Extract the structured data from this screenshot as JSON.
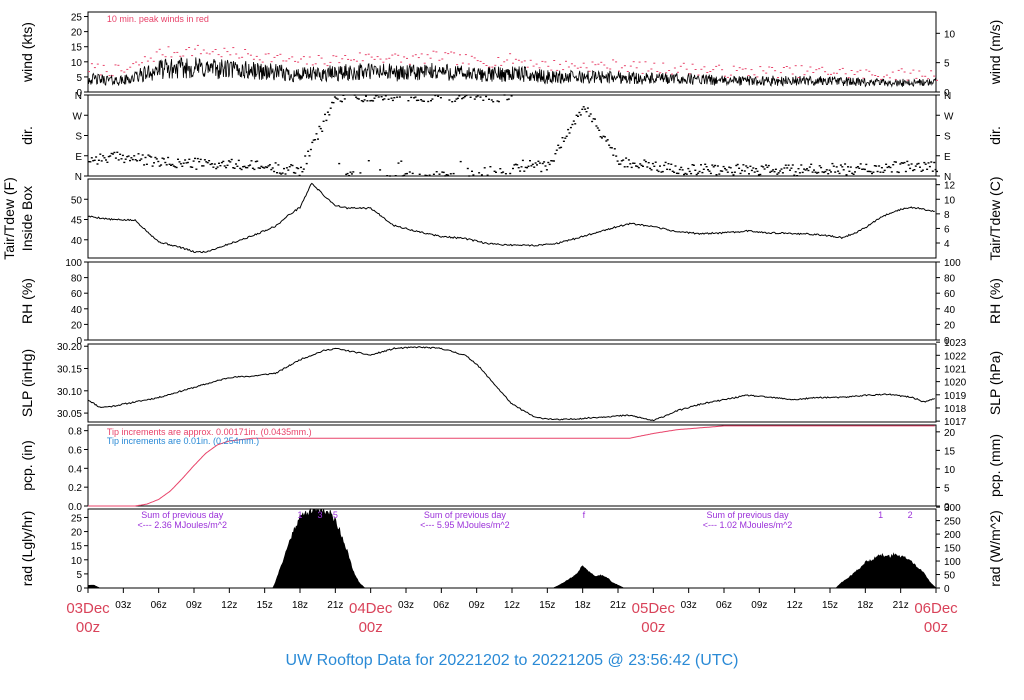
{
  "title": "UW Rooftop Data for 20221202  to  20221205 @ 23:56:42  (UTC)",
  "colors": {
    "peak": "#e8436a",
    "pcp": "#e8436a",
    "note_blue": "#2a8ad6",
    "rad_note": "#9b30d9",
    "date": "#d9435a",
    "title": "#2a8ad6"
  },
  "x_axis": {
    "hour_labels": [
      "03z",
      "06z",
      "09z",
      "12z",
      "15z",
      "18z",
      "21z",
      "03z",
      "06z",
      "09z",
      "12z",
      "15z",
      "18z",
      "21z",
      "03z",
      "06z",
      "09z",
      "12z",
      "15z",
      "18z",
      "21z"
    ],
    "hour_positions_h": [
      3,
      6,
      9,
      12,
      15,
      18,
      21,
      27,
      30,
      33,
      36,
      39,
      42,
      45,
      51,
      54,
      57,
      60,
      63,
      66,
      69
    ],
    "date_labels": [
      {
        "h": 0,
        "day": "03Dec",
        "time": "00z"
      },
      {
        "h": 24,
        "day": "04Dec",
        "time": "00z"
      },
      {
        "h": 48,
        "day": "05Dec",
        "time": "00z"
      },
      {
        "h": 72,
        "day": "06Dec",
        "time": "00z"
      }
    ]
  },
  "panels": {
    "wind": {
      "left_label": "wind (kts)",
      "right_label": "wind (m/s)",
      "left_ticks": [
        "0",
        "5",
        "10",
        "15",
        "20",
        "25"
      ],
      "left_vals": [
        0,
        5,
        10,
        15,
        20,
        25
      ],
      "right_ticks": [
        "0",
        "5",
        "10"
      ],
      "right_vals": [
        0,
        5,
        10
      ],
      "ylim": [
        0,
        26.5
      ],
      "annotation": "10 min. peak winds in red"
    },
    "dir": {
      "left_label": "dir.",
      "right_label": "dir.",
      "ticks": [
        "N",
        "E",
        "S",
        "W",
        "N"
      ],
      "vals": [
        0,
        90,
        180,
        270,
        360
      ]
    },
    "temp": {
      "left_label_1": "Tair/Tdew (F)",
      "left_label_2": "Inside Box",
      "right_label": "Tair/Tdew (C)",
      "left_ticks": [
        "40",
        "45",
        "50"
      ],
      "left_vals": [
        40,
        45,
        50
      ],
      "right_ticks": [
        "4",
        "6",
        "8",
        "10",
        "12"
      ],
      "right_vals": [
        4,
        6,
        8,
        10,
        12
      ],
      "ylim": [
        35.5,
        55
      ]
    },
    "rh": {
      "left_label": "RH (%)",
      "right_label": "RH (%)",
      "ticks": [
        "0",
        "20",
        "40",
        "60",
        "80",
        "100"
      ],
      "vals": [
        0,
        20,
        40,
        60,
        80,
        100
      ],
      "ylim": [
        0,
        100
      ]
    },
    "slp": {
      "left_label": "SLP (inHg)",
      "right_label": "SLP (hPa)",
      "left_ticks": [
        "30.05",
        "30.10",
        "30.15",
        "30.20"
      ],
      "left_vals": [
        30.05,
        30.1,
        30.15,
        30.2
      ],
      "right_ticks": [
        "1017",
        "1018",
        "1019",
        "1020",
        "1021",
        "1022",
        "1023"
      ],
      "ylim": [
        30.03,
        30.205
      ]
    },
    "pcp": {
      "left_label": "pcp. (in)",
      "right_label": "pcp. (mm)",
      "left_ticks": [
        "0.0",
        "0.2",
        "0.4",
        "0.6",
        "0.8"
      ],
      "left_vals": [
        0,
        0.2,
        0.4,
        0.6,
        0.8
      ],
      "right_ticks": [
        "0",
        "5",
        "10",
        "15",
        "20"
      ],
      "right_vals": [
        0,
        5,
        10,
        15,
        20
      ],
      "ylim": [
        0,
        0.86
      ],
      "note_red": "Tip increments are approx. 0.00171in. (0.0435mm.)",
      "note_blue": "Tip increments are 0.01in. (0.254mm.)"
    },
    "rad": {
      "left_label": "rad (Lgly/hr)",
      "right_label": "rad (W/m^2)",
      "left_ticks": [
        "0",
        "5",
        "10",
        "15",
        "20",
        "25"
      ],
      "left_vals": [
        0,
        5,
        10,
        15,
        20,
        25
      ],
      "right_ticks": [
        "0",
        "50",
        "100",
        "150",
        "200",
        "250",
        "300"
      ],
      "right_vals": [
        0,
        50,
        100,
        150,
        200,
        250,
        300
      ],
      "ylim": [
        0,
        28
      ],
      "day_notes": [
        {
          "h": 8,
          "line1": "Sum of previous day",
          "line2": "<--- 2.36 MJoules/m^2"
        },
        {
          "h": 32,
          "line1": "Sum of previous day",
          "line2": "<--- 5.95 MJoules/m^2"
        },
        {
          "h": 56,
          "line1": "Sum of previous day",
          "line2": "<--- 1.02 MJoules/m^2"
        }
      ],
      "markers": [
        {
          "h": 18,
          "text": "1"
        },
        {
          "h": 19.7,
          "text": "3"
        },
        {
          "h": 21,
          "text": "5"
        },
        {
          "h": 42.1,
          "text": "f"
        },
        {
          "h": 67.3,
          "text": "1"
        },
        {
          "h": 69.8,
          "text": "2"
        }
      ]
    }
  },
  "chart_data": [
    {
      "type": "line",
      "title": "",
      "ylabel": "wind (kts)",
      "y2label": "wind (m/s)",
      "ylim": [
        0,
        26.5
      ],
      "series": [
        {
          "name": "10 min. peak winds",
          "color": "#e8436a"
        }
      ],
      "x": [
        0,
        3,
        6,
        9,
        12,
        15,
        18,
        21,
        24,
        27,
        30,
        33,
        36,
        39,
        42,
        45,
        48,
        51,
        54,
        57,
        60,
        63,
        66,
        69,
        72
      ],
      "values": [
        7,
        6,
        12,
        13,
        12,
        11,
        9,
        10,
        11,
        10,
        11,
        9,
        10,
        8,
        8,
        8,
        7,
        7,
        6,
        6,
        6,
        6,
        5,
        5,
        5
      ]
    },
    {
      "type": "scatter",
      "title": "",
      "ylabel": "dir.",
      "ylim": [
        0,
        360
      ],
      "x": [
        0,
        3,
        6,
        9,
        12,
        15,
        18,
        21,
        24,
        27,
        30,
        33,
        36,
        39,
        42,
        45,
        48,
        51,
        54,
        57,
        60,
        63,
        66,
        69,
        72
      ],
      "values": [
        75,
        85,
        60,
        55,
        50,
        40,
        25,
        355,
        355,
        355,
        355,
        355,
        45,
        45,
        310,
        70,
        40,
        30,
        30,
        25,
        25,
        30,
        30,
        40,
        40
      ]
    },
    {
      "type": "line",
      "title": "",
      "ylabel": "Tair/Tdew (F)",
      "y2label": "Tair/Tdew (C)",
      "ylim": [
        35.5,
        55
      ],
      "x": [
        0,
        2,
        4,
        6,
        8,
        9,
        10,
        12,
        14,
        16,
        17,
        18,
        19,
        20,
        21,
        22,
        24,
        26,
        28,
        30,
        32,
        34,
        36,
        38,
        40,
        42,
        44,
        46,
        48,
        50,
        52,
        54,
        56,
        58,
        60,
        62,
        64,
        65,
        66,
        67,
        68,
        69,
        70,
        71,
        72
      ],
      "values": [
        45.8,
        45,
        44.8,
        39.5,
        38,
        37,
        37,
        39,
        41,
        43.5,
        46,
        48,
        54,
        51,
        48.5,
        47.8,
        47.8,
        43.5,
        42,
        40.8,
        40.3,
        39,
        38.7,
        38.6,
        39.2,
        40.8,
        42.5,
        44,
        43.2,
        42,
        41.5,
        41.7,
        42.2,
        41.7,
        41.5,
        41.3,
        40.5,
        41.5,
        43,
        45,
        46.5,
        47.5,
        48,
        47.5,
        47
      ]
    },
    {
      "type": "line",
      "title": "",
      "ylabel": "RH (%)",
      "ylim": [
        0,
        100
      ],
      "x": [],
      "values": []
    },
    {
      "type": "line",
      "title": "",
      "ylabel": "SLP (inHg)",
      "y2label": "SLP (hPa)",
      "ylim": [
        30.03,
        30.205
      ],
      "x": [
        0,
        1,
        2,
        4,
        6,
        8,
        10,
        12,
        14,
        16,
        17,
        18,
        20,
        21,
        22,
        24,
        26,
        28,
        30,
        32,
        33,
        34,
        36,
        38,
        40,
        42,
        44,
        46,
        48,
        50,
        52,
        54,
        56,
        58,
        60,
        62,
        64,
        66,
        68,
        70,
        71,
        72
      ],
      "values": [
        30.08,
        30.063,
        30.065,
        30.075,
        30.085,
        30.1,
        30.115,
        30.13,
        30.133,
        30.14,
        30.155,
        30.17,
        30.19,
        30.195,
        30.19,
        30.18,
        30.195,
        30.198,
        30.195,
        30.18,
        30.16,
        30.13,
        30.07,
        30.04,
        30.035,
        30.038,
        30.042,
        30.045,
        30.033,
        30.055,
        30.07,
        30.08,
        30.09,
        30.085,
        30.08,
        30.085,
        30.085,
        30.09,
        30.092,
        30.085,
        30.075,
        30.083
      ]
    },
    {
      "type": "line",
      "title": "",
      "ylabel": "pcp. (in)",
      "y2label": "pcp. (mm)",
      "ylim": [
        0,
        0.86
      ],
      "x": [
        0,
        3,
        4,
        5,
        6,
        7,
        8,
        9,
        10,
        11,
        12,
        14,
        16,
        18,
        20,
        22,
        24,
        26,
        28,
        30,
        32,
        34,
        36,
        38,
        40,
        42,
        44,
        46,
        48,
        50,
        52,
        54,
        56,
        58,
        60,
        62,
        64,
        66,
        68,
        70,
        72
      ],
      "values": [
        0,
        0,
        0,
        0.02,
        0.07,
        0.16,
        0.29,
        0.43,
        0.56,
        0.65,
        0.69,
        0.72,
        0.72,
        0.72,
        0.72,
        0.72,
        0.72,
        0.72,
        0.72,
        0.72,
        0.72,
        0.72,
        0.72,
        0.72,
        0.72,
        0.72,
        0.72,
        0.72,
        0.77,
        0.81,
        0.83,
        0.85,
        0.85,
        0.85,
        0.85,
        0.85,
        0.85,
        0.85,
        0.85,
        0.85,
        0.85
      ]
    },
    {
      "type": "area",
      "title": "",
      "ylabel": "rad (Lgly/hr)",
      "y2label": "rad (W/m^2)",
      "ylim": [
        0,
        28
      ],
      "x": [
        0,
        0.5,
        1,
        15.7,
        16,
        16.5,
        17,
        17.5,
        18,
        18.5,
        19,
        19.5,
        20,
        20.5,
        21,
        21.5,
        22,
        22.5,
        23,
        23.5,
        24,
        39.5,
        40,
        41,
        41.5,
        42,
        42.5,
        43,
        43.5,
        44,
        44.5,
        45,
        45.5,
        46,
        46.5,
        47,
        63.5,
        64,
        65,
        66,
        66.5,
        67,
        67.5,
        68,
        68.5,
        69,
        69.5,
        70,
        70.5,
        71,
        71.5,
        72
      ],
      "values": [
        1,
        1,
        0,
        0,
        3,
        9,
        15,
        21,
        25,
        26.5,
        27.5,
        28,
        27.5,
        26.5,
        24,
        19,
        13,
        6,
        2,
        0,
        0,
        0,
        1,
        3.5,
        5,
        8,
        6,
        4,
        4.5,
        4,
        2,
        1,
        0,
        0,
        0,
        0,
        0,
        2,
        5,
        9,
        10,
        11,
        11.5,
        11,
        12,
        11,
        10.5,
        9,
        7,
        5,
        2,
        0
      ]
    }
  ]
}
